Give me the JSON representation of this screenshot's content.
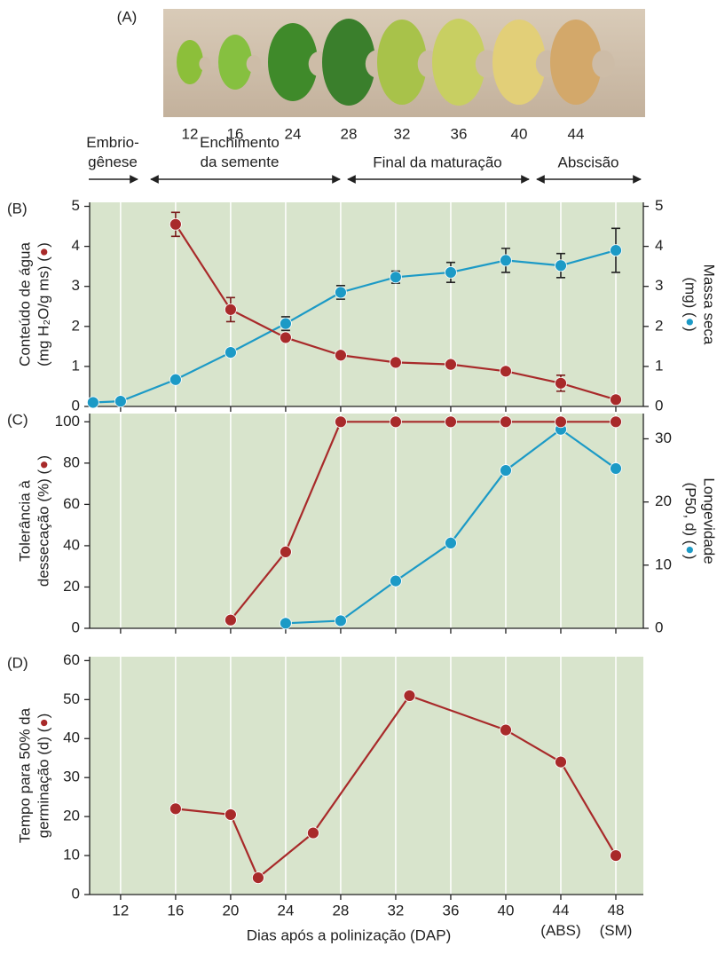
{
  "photo": {
    "label": "(A)",
    "days": [
      "12",
      "16",
      "24",
      "28",
      "32",
      "36",
      "40",
      "44"
    ]
  },
  "stages": [
    "Embrio-\ngênese",
    "Enchimento\nda semente",
    "Final da maturação",
    "Abscisão"
  ],
  "chart_data": [
    {
      "type": "line",
      "panel_label": "(B)",
      "background": "#d8e4cc",
      "grid": true,
      "xlim": [
        9.75,
        50
      ],
      "xticks": [
        12,
        16,
        20,
        24,
        28,
        32,
        36,
        40,
        44,
        48
      ],
      "ylim": [
        0,
        5.1
      ],
      "yticks": [
        0,
        1,
        2,
        3,
        4,
        5
      ],
      "y2lim": [
        0,
        5.1
      ],
      "y2ticks": [
        0,
        1,
        2,
        3,
        4,
        5
      ],
      "ylabel": "Conteúdo de água\n(mg H₂O/g ms) (●)",
      "y2label": "Massa seca\n(mg) (●)",
      "series": [
        {
          "color": "#1c9ac6",
          "axis": "y2",
          "error_color": "#222222",
          "x": [
            10,
            12,
            16,
            20,
            24,
            28,
            32,
            36,
            40,
            44,
            48
          ],
          "values": [
            0.1,
            0.13,
            0.67,
            1.35,
            2.07,
            2.85,
            3.23,
            3.35,
            3.65,
            3.52,
            3.9
          ],
          "errors": [
            null,
            null,
            null,
            null,
            0.17,
            0.17,
            0.15,
            0.25,
            0.3,
            0.3,
            0.55
          ]
        },
        {
          "color": "#a82a2a",
          "error_color": "#7a1c1c",
          "x": [
            16,
            20,
            24,
            28,
            32,
            36,
            40,
            44,
            48
          ],
          "values": [
            4.55,
            2.42,
            1.72,
            1.28,
            1.1,
            1.05,
            0.88,
            0.58,
            0.17
          ],
          "errors": [
            0.3,
            0.3,
            null,
            null,
            null,
            null,
            null,
            0.2,
            null
          ]
        }
      ]
    },
    {
      "type": "line",
      "panel_label": "(C)",
      "background": "#d8e4cc",
      "grid": true,
      "xlim": [
        9.75,
        50
      ],
      "xticks": [
        12,
        16,
        20,
        24,
        28,
        32,
        36,
        40,
        44,
        48
      ],
      "ylim": [
        0,
        104
      ],
      "yticks": [
        0,
        20,
        40,
        60,
        80,
        100
      ],
      "y2lim": [
        0,
        34
      ],
      "y2ticks": [
        0,
        10,
        20,
        30
      ],
      "ylabel": "Tolerância à\ndessecação (%) (●)",
      "y2label": "Longevidade\n(P50, d) (●)",
      "series": [
        {
          "color": "#1c9ac6",
          "axis": "y2",
          "x": [
            24,
            28,
            32,
            36,
            40,
            44,
            48
          ],
          "values": [
            0.8,
            1.2,
            7.5,
            13.5,
            25,
            31.5,
            25.3
          ]
        },
        {
          "color": "#a82a2a",
          "x": [
            20,
            24,
            28,
            32,
            36,
            40,
            44,
            48
          ],
          "values": [
            4,
            37,
            100,
            100,
            100,
            100,
            100,
            100
          ]
        }
      ]
    },
    {
      "type": "line",
      "panel_label": "(D)",
      "background": "#d8e4cc",
      "grid": true,
      "xlim": [
        9.75,
        50
      ],
      "xticks": [
        12,
        16,
        20,
        24,
        28,
        32,
        36,
        40,
        {
          "value": 44,
          "label": "44\n(ABS)"
        },
        {
          "value": 48,
          "label": "48\n(SM)"
        }
      ],
      "ylim": [
        0,
        61
      ],
      "yticks": [
        0,
        10,
        20,
        30,
        40,
        50,
        60
      ],
      "ylabel": "Tempo para 50% da\ngerminação (d) (●)",
      "xlabel": "Dias após a polinização (DAP)",
      "series": [
        {
          "color": "#a82a2a",
          "x": [
            16,
            20,
            22,
            26,
            33,
            40,
            44,
            48
          ],
          "values": [
            22,
            20.5,
            4.3,
            15.8,
            51,
            42.2,
            34,
            10
          ]
        }
      ]
    }
  ]
}
